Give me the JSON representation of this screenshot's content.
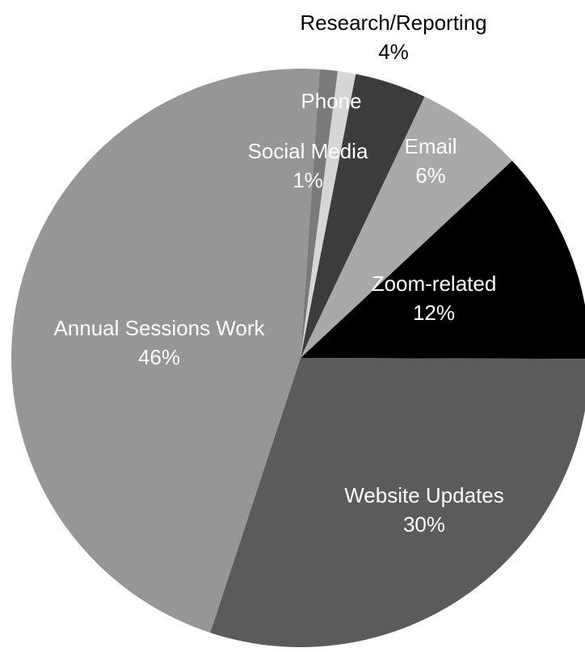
{
  "chart_data": {
    "type": "pie",
    "title": "",
    "slices": [
      {
        "label": "Zoom-related",
        "percent_label": "12%",
        "value": 12,
        "color": "#000000",
        "label_color": "#ffffff"
      },
      {
        "label": "Website Updates",
        "percent_label": "30%",
        "value": 30,
        "color": "#5b5b5b",
        "label_color": "#ffffff"
      },
      {
        "label": "Annual Sessions Work",
        "percent_label": "46%",
        "value": 46,
        "color": "#969696",
        "label_color": "#ffffff"
      },
      {
        "label": "Social Media",
        "percent_label": "1%",
        "value": 1,
        "color": "#7a7a7a",
        "label_color": "#ffffff"
      },
      {
        "label": "Phone",
        "percent_label": "",
        "value": 1,
        "color": "#d6d6d6",
        "label_color": "#ffffff"
      },
      {
        "label": "Research/Reporting",
        "percent_label": "4%",
        "value": 4,
        "color": "#3c3c3c",
        "label_color": "#000000"
      },
      {
        "label": "Email",
        "percent_label": "6%",
        "value": 6,
        "color": "#a9a9a9",
        "label_color": "#ffffff"
      }
    ],
    "legend": "none"
  }
}
